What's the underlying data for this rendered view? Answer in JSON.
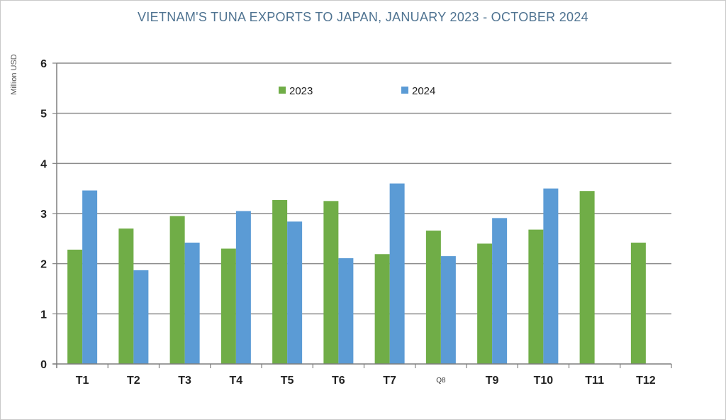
{
  "chart_data": {
    "type": "bar",
    "title": "VIETNAM'S TUNA EXPORTS TO JAPAN, JANUARY 2023 - OCTOBER 2024",
    "ylabel": "Million USD",
    "xlabel": "",
    "ylim": [
      0,
      6
    ],
    "yticks": [
      0,
      1,
      2,
      3,
      4,
      5,
      6
    ],
    "grid": true,
    "legend_position": "top-center",
    "categories": [
      "T1",
      "T2",
      "T3",
      "T4",
      "T5",
      "T6",
      "T7",
      "Q8",
      "T9",
      "T10",
      "T11",
      "T12"
    ],
    "series": [
      {
        "name": "2023",
        "color": "#70ad47",
        "values": [
          2.28,
          2.7,
          2.95,
          2.3,
          3.27,
          3.25,
          2.19,
          2.66,
          2.4,
          2.68,
          3.45,
          2.42
        ]
      },
      {
        "name": "2024",
        "color": "#5b9bd5",
        "values": [
          3.46,
          1.87,
          2.42,
          3.05,
          2.84,
          2.11,
          3.6,
          2.15,
          2.91,
          3.5,
          null,
          null
        ]
      }
    ]
  }
}
